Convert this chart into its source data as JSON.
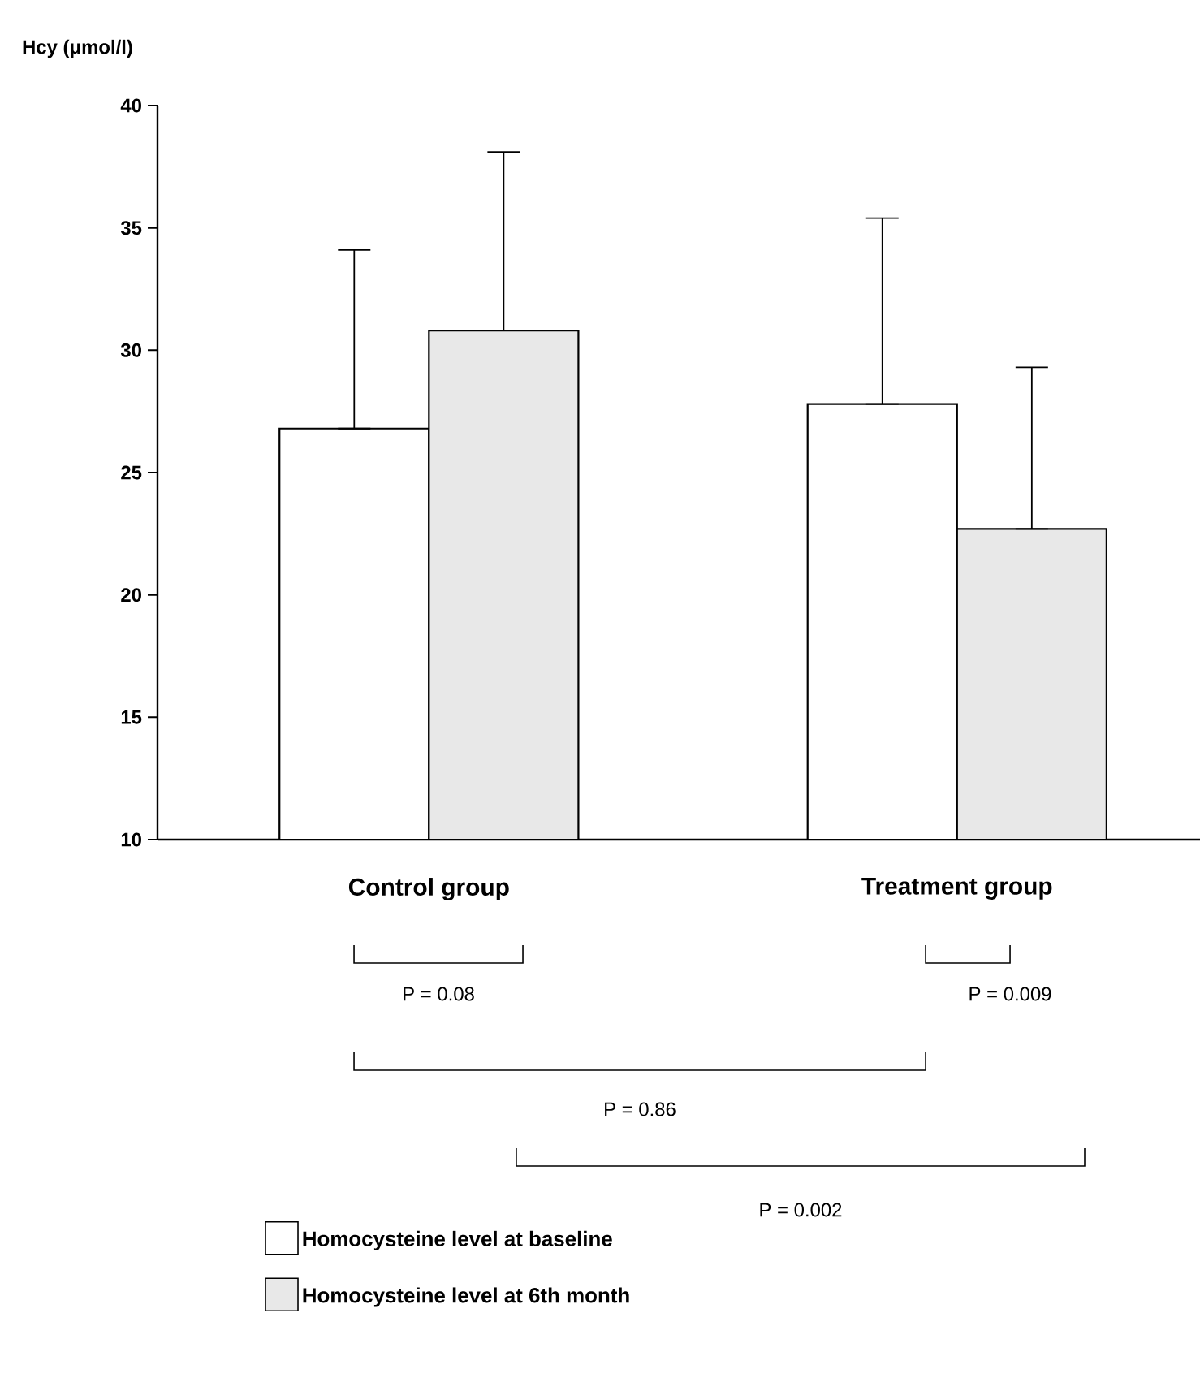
{
  "chart_data": {
    "type": "bar",
    "ylabel": "Hcy (μmol/l)",
    "categories": [
      "Control group",
      "Treatment group"
    ],
    "series": [
      {
        "name": "Homocysteine level at baseline",
        "color": "#ffffff",
        "values": [
          26.8,
          27.8
        ],
        "errors": [
          [
            26.8,
            34.1
          ],
          [
            27.8,
            35.4
          ]
        ]
      },
      {
        "name": "Homocysteine level at 6th month",
        "color": "#e8e8e8",
        "values": [
          30.8,
          22.7
        ],
        "errors": [
          [
            30.8,
            38.1
          ],
          [
            22.7,
            29.3
          ]
        ]
      }
    ],
    "ylim": [
      10,
      40
    ],
    "yticks": [
      10,
      15,
      20,
      25,
      30,
      35,
      40
    ],
    "annotations": [
      "P = 0.08",
      "P = 0.009",
      "P = 0.86",
      "P = 0.002"
    ],
    "legend": "bottom"
  }
}
